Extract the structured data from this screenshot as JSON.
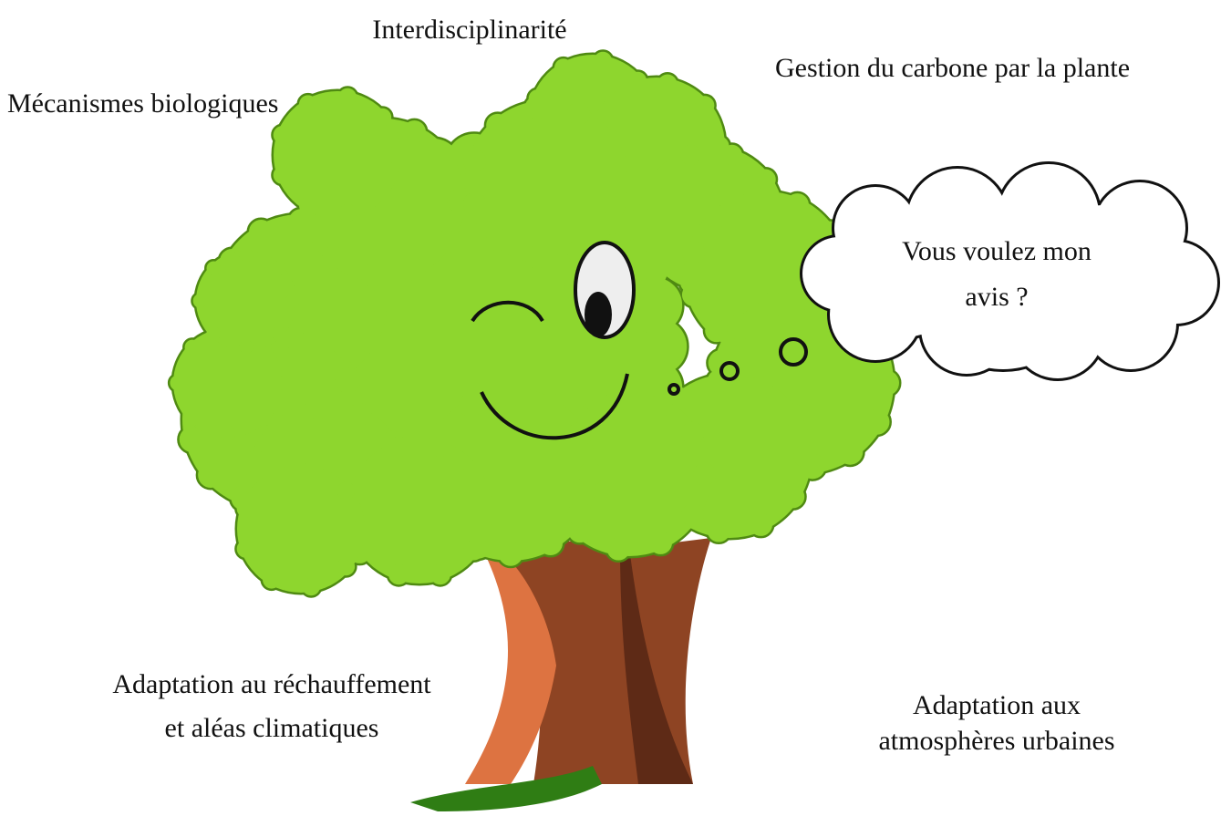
{
  "labels": [
    {
      "lines": [
        "Interdisciplinarité"
      ]
    },
    {
      "lines": [
        "Gestion du carbone par la plante"
      ]
    },
    {
      "lines": [
        "Mécanismes biologiques"
      ]
    },
    {
      "lines": [
        "Adaptation au réchauffement",
        "et aléas climatiques"
      ]
    },
    {
      "lines": [
        "Adaptation aux",
        "atmosphères urbaines"
      ]
    }
  ],
  "thought_bubble": {
    "lines": [
      "Vous voulez mon",
      "avis  ?"
    ]
  }
}
